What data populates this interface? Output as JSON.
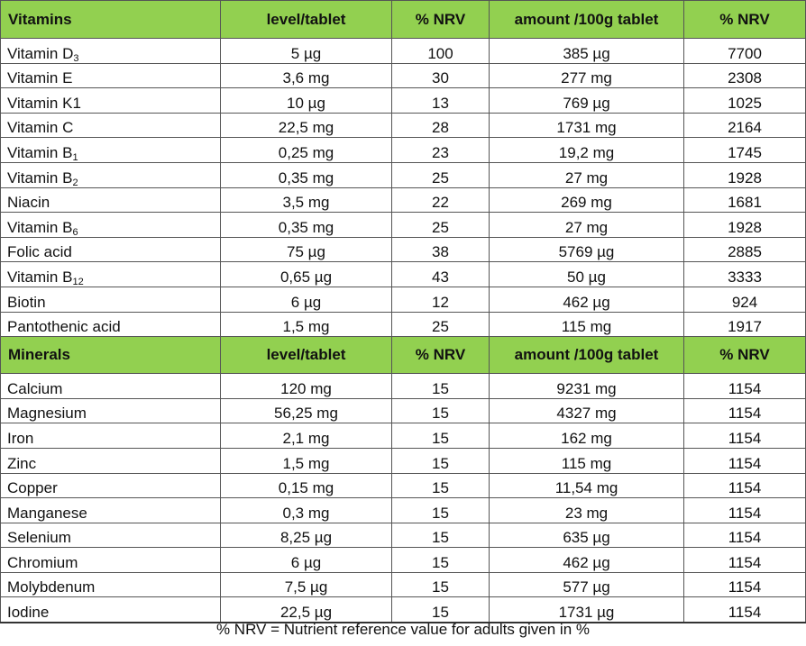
{
  "columns": {
    "vitamins_label": "Vitamins",
    "minerals_label": "Minerals",
    "level": "level/tablet",
    "nrv": "% NRV",
    "amount": "amount /100g tablet",
    "nrv2": "% NRV"
  },
  "vitamins": [
    {
      "name": "Vitamin D",
      "sub": "3",
      "level": "5 µg",
      "nrv": "100",
      "amount": "385 µg",
      "nrv100": "7700"
    },
    {
      "name": "Vitamin E",
      "sub": "",
      "level": "3,6 mg",
      "nrv": "30",
      "amount": "277 mg",
      "nrv100": "2308"
    },
    {
      "name": "Vitamin K1",
      "sub": "",
      "level": "10 µg",
      "nrv": "13",
      "amount": "769 µg",
      "nrv100": "1025"
    },
    {
      "name": "Vitamin C",
      "sub": "",
      "level": "22,5 mg",
      "nrv": "28",
      "amount": "1731 mg",
      "nrv100": "2164"
    },
    {
      "name": "Vitamin B",
      "sub": "1",
      "level": "0,25 mg",
      "nrv": "23",
      "amount": "19,2 mg",
      "nrv100": "1745"
    },
    {
      "name": "Vitamin B",
      "sub": "2",
      "level": "0,35 mg",
      "nrv": "25",
      "amount": "27 mg",
      "nrv100": "1928"
    },
    {
      "name": "Niacin",
      "sub": "",
      "level": "3,5 mg",
      "nrv": "22",
      "amount": "269 mg",
      "nrv100": "1681"
    },
    {
      "name": "Vitamin B",
      "sub": "6",
      "level": "0,35 mg",
      "nrv": "25",
      "amount": "27 mg",
      "nrv100": "1928"
    },
    {
      "name": "Folic acid",
      "sub": "",
      "level": "75 µg",
      "nrv": "38",
      "amount": "5769 µg",
      "nrv100": "2885"
    },
    {
      "name": "Vitamin B",
      "sub": "12",
      "level": "0,65 µg",
      "nrv": "43",
      "amount": "50 µg",
      "nrv100": "3333"
    },
    {
      "name": "Biotin",
      "sub": "",
      "level": "6 µg",
      "nrv": "12",
      "amount": "462 µg",
      "nrv100": "924"
    },
    {
      "name": "Pantothenic acid",
      "sub": "",
      "level": "1,5 mg",
      "nrv": "25",
      "amount": "115 mg",
      "nrv100": "1917"
    }
  ],
  "minerals": [
    {
      "name": "Calcium",
      "level": "120 mg",
      "nrv": "15",
      "amount": "9231 mg",
      "nrv100": "1154"
    },
    {
      "name": "Magnesium",
      "level": "56,25 mg",
      "nrv": "15",
      "amount": "4327 mg",
      "nrv100": "1154"
    },
    {
      "name": "Iron",
      "level": "2,1 mg",
      "nrv": "15",
      "amount": "162 mg",
      "nrv100": "1154"
    },
    {
      "name": "Zinc",
      "level": "1,5 mg",
      "nrv": "15",
      "amount": "115 mg",
      "nrv100": "1154"
    },
    {
      "name": "Copper",
      "level": "0,15 mg",
      "nrv": "15",
      "amount": "11,54 mg",
      "nrv100": "1154"
    },
    {
      "name": "Manganese",
      "level": "0,3 mg",
      "nrv": "15",
      "amount": "23 mg",
      "nrv100": "1154"
    },
    {
      "name": "Selenium",
      "level": "8,25 µg",
      "nrv": "15",
      "amount": "635 µg",
      "nrv100": "1154"
    },
    {
      "name": "Chromium",
      "level": "6 µg",
      "nrv": "15",
      "amount": "462 µg",
      "nrv100": "1154"
    },
    {
      "name": "Molybdenum",
      "level": "7,5 µg",
      "nrv": "15",
      "amount": "577 µg",
      "nrv100": "1154"
    },
    {
      "name": "Iodine",
      "level": "22,5 µg",
      "nrv": "15",
      "amount": "1731 µg",
      "nrv100": "1154"
    }
  ],
  "footnote": "% NRV = Nutrient reference value for adults given in %",
  "colors": {
    "header_green": "#92d050",
    "border": "#555555"
  }
}
